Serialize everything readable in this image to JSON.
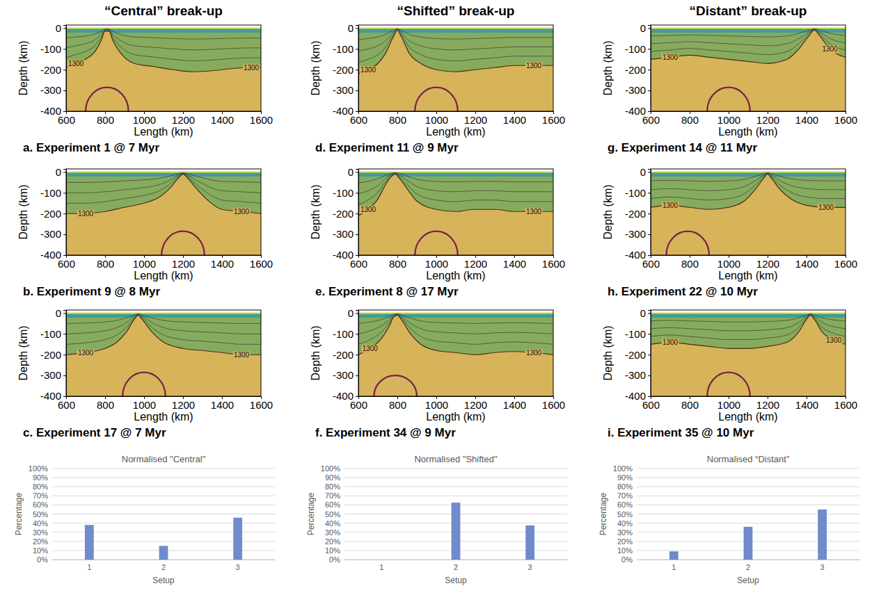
{
  "column_titles": [
    "“Central” break-up",
    "“Shifted” break-up",
    "“Distant” break-up"
  ],
  "chart_data": [
    {
      "type": "contour",
      "caption": "a. Experiment 1 @ 7 Myr",
      "xlabel": "Length (km)",
      "ylabel": "Depth (km)",
      "xlim": [
        600,
        1600
      ],
      "xticks": [
        600,
        800,
        1000,
        1200,
        1400,
        1600
      ],
      "ylim": [
        -400,
        15
      ],
      "yticks": [
        -400,
        -300,
        -200,
        -100,
        0
      ],
      "series": [
        {
          "name": "1300",
          "x": [
            600,
            650,
            700,
            750,
            780,
            800,
            820,
            840,
            880,
            950,
            1050,
            1150,
            1250,
            1350,
            1450,
            1550,
            1600
          ],
          "values": [
            -190,
            -170,
            -150,
            -110,
            -60,
            -15,
            -15,
            -60,
            -120,
            -170,
            -185,
            -200,
            -210,
            -205,
            -195,
            -190,
            -190
          ]
        }
      ],
      "anomaly": {
        "x": 810,
        "half_width": 110,
        "top": -285
      }
    },
    {
      "type": "contour",
      "caption": "b. Experiment 9 @ 8 Myr",
      "xlabel": "Length (km)",
      "ylabel": "Depth (km)",
      "xlim": [
        600,
        1600
      ],
      "xticks": [
        600,
        800,
        1000,
        1200,
        1400,
        1600
      ],
      "ylim": [
        -400,
        15
      ],
      "yticks": [
        -400,
        -300,
        -200,
        -100,
        0
      ],
      "series": [
        {
          "name": "1300",
          "x": [
            600,
            700,
            800,
            900,
            1000,
            1080,
            1140,
            1180,
            1200,
            1220,
            1260,
            1320,
            1400,
            1500,
            1600
          ],
          "values": [
            -200,
            -200,
            -190,
            -170,
            -150,
            -120,
            -70,
            -25,
            -10,
            -25,
            -70,
            -130,
            -180,
            -190,
            -200
          ]
        }
      ],
      "anomaly": {
        "x": 1200,
        "half_width": 110,
        "top": -285
      }
    },
    {
      "type": "contour",
      "caption": "c. Experiment 17 @ 7 Myr",
      "xlabel": "Length (km)",
      "ylabel": "Depth (km)",
      "xlim": [
        600,
        1600
      ],
      "xticks": [
        600,
        800,
        1000,
        1200,
        1400,
        1600
      ],
      "ylim": [
        -400,
        15
      ],
      "yticks": [
        -400,
        -300,
        -200,
        -100,
        0
      ],
      "series": [
        {
          "name": "1300",
          "x": [
            600,
            700,
            800,
            860,
            910,
            950,
            970,
            990,
            1040,
            1100,
            1200,
            1300,
            1400,
            1500,
            1600
          ],
          "values": [
            -200,
            -190,
            -170,
            -140,
            -90,
            -30,
            -10,
            -30,
            -90,
            -140,
            -170,
            -180,
            -190,
            -200,
            -200
          ]
        }
      ],
      "anomaly": {
        "x": 1000,
        "half_width": 110,
        "top": -285
      }
    },
    {
      "type": "contour",
      "caption": "d. Experiment 11 @ 9 Myr",
      "xlabel": "Length (km)",
      "ylabel": "Depth (km)",
      "xlim": [
        600,
        1600
      ],
      "xticks": [
        600,
        800,
        1000,
        1200,
        1400,
        1600
      ],
      "ylim": [
        -400,
        15
      ],
      "yticks": [
        -400,
        -300,
        -200,
        -100,
        0
      ],
      "series": [
        {
          "name": "1300",
          "x": [
            600,
            650,
            700,
            740,
            780,
            800,
            820,
            860,
            920,
            1000,
            1100,
            1200,
            1300,
            1400,
            1500,
            1600
          ],
          "values": [
            -220,
            -200,
            -170,
            -120,
            -40,
            -10,
            -40,
            -120,
            -170,
            -200,
            -210,
            -200,
            -190,
            -180,
            -180,
            -180
          ]
        }
      ],
      "anomaly": {
        "x": 1000,
        "half_width": 110,
        "top": -285
      }
    },
    {
      "type": "contour",
      "caption": "e. Experiment 8 @ 17 Myr",
      "xlabel": "Length (km)",
      "ylabel": "Depth (km)",
      "xlim": [
        600,
        1600
      ],
      "xticks": [
        600,
        800,
        1000,
        1200,
        1400,
        1600
      ],
      "ylim": [
        -400,
        15
      ],
      "yticks": [
        -400,
        -300,
        -200,
        -100,
        0
      ],
      "series": [
        {
          "name": "1300",
          "x": [
            600,
            650,
            700,
            740,
            770,
            790,
            810,
            850,
            900,
            1000,
            1100,
            1200,
            1300,
            1400,
            1500,
            1600
          ],
          "values": [
            -210,
            -180,
            -130,
            -60,
            -20,
            -10,
            -30,
            -80,
            -140,
            -180,
            -190,
            -180,
            -180,
            -190,
            -190,
            -190
          ]
        }
      ],
      "anomaly": {
        "x": 1000,
        "half_width": 110,
        "top": -285
      }
    },
    {
      "type": "contour",
      "caption": "f. Experiment 34 @ 9 Myr",
      "xlabel": "Length (km)",
      "ylabel": "Depth (km)",
      "xlim": [
        600,
        1600
      ],
      "xticks": [
        600,
        800,
        1000,
        1200,
        1400,
        1600
      ],
      "ylim": [
        -400,
        15
      ],
      "yticks": [
        -400,
        -300,
        -200,
        -100,
        0
      ],
      "series": [
        {
          "name": "1300",
          "x": [
            600,
            660,
            720,
            760,
            780,
            800,
            820,
            860,
            920,
            1000,
            1100,
            1200,
            1300,
            1400,
            1500,
            1600
          ],
          "values": [
            -200,
            -170,
            -120,
            -60,
            -20,
            -10,
            -30,
            -90,
            -150,
            -180,
            -190,
            -200,
            -190,
            -185,
            -190,
            -200
          ]
        }
      ],
      "anomaly": {
        "x": 790,
        "half_width": 110,
        "top": -300
      }
    },
    {
      "type": "contour",
      "caption": "g. Experiment 14 @ 11 Myr",
      "xlabel": "Length (km)",
      "ylabel": "Depth (km)",
      "xlim": [
        600,
        1600
      ],
      "xticks": [
        600,
        800,
        1000,
        1200,
        1400,
        1600
      ],
      "ylim": [
        -400,
        15
      ],
      "yticks": [
        -400,
        -300,
        -200,
        -100,
        0
      ],
      "series": [
        {
          "name": "1300",
          "x": [
            600,
            700,
            800,
            900,
            1000,
            1100,
            1200,
            1300,
            1360,
            1410,
            1440,
            1470,
            1520,
            1600
          ],
          "values": [
            -150,
            -140,
            -130,
            -140,
            -150,
            -160,
            -170,
            -150,
            -100,
            -40,
            -10,
            -40,
            -100,
            -140
          ]
        }
      ],
      "anomaly": {
        "x": 1000,
        "half_width": 110,
        "top": -285
      }
    },
    {
      "type": "contour",
      "caption": "h. Experiment 22 @ 10 Myr",
      "xlabel": "Length (km)",
      "ylabel": "Depth (km)",
      "xlim": [
        600,
        1600
      ],
      "xticks": [
        600,
        800,
        1000,
        1200,
        1400,
        1600
      ],
      "ylim": [
        -400,
        15
      ],
      "yticks": [
        -400,
        -300,
        -200,
        -100,
        0
      ],
      "series": [
        {
          "name": "1300",
          "x": [
            600,
            700,
            800,
            900,
            1000,
            1080,
            1140,
            1180,
            1200,
            1220,
            1260,
            1320,
            1400,
            1500,
            1600
          ],
          "values": [
            -170,
            -160,
            -170,
            -180,
            -170,
            -140,
            -80,
            -30,
            -10,
            -30,
            -80,
            -130,
            -160,
            -170,
            -170
          ]
        }
      ],
      "anomaly": {
        "x": 790,
        "half_width": 110,
        "top": -285
      }
    },
    {
      "type": "contour",
      "caption": "i. Experiment 35 @ 10 Myr",
      "xlabel": "Length (km)",
      "ylabel": "Depth (km)",
      "xlim": [
        600,
        1600
      ],
      "xticks": [
        600,
        800,
        1000,
        1200,
        1400,
        1600
      ],
      "ylim": [
        -400,
        15
      ],
      "yticks": [
        -400,
        -300,
        -200,
        -100,
        0
      ],
      "series": [
        {
          "name": "1300",
          "x": [
            600,
            700,
            800,
            900,
            1000,
            1100,
            1200,
            1300,
            1360,
            1400,
            1420,
            1440,
            1480,
            1540,
            1600
          ],
          "values": [
            -150,
            -140,
            -150,
            -160,
            -170,
            -170,
            -160,
            -140,
            -90,
            -30,
            -10,
            -30,
            -90,
            -130,
            -150
          ]
        }
      ],
      "anomaly": {
        "x": 1000,
        "half_width": 110,
        "top": -285
      }
    },
    {
      "type": "bar",
      "title": "Normalised \"Central\"",
      "xlabel": "Setup",
      "ylabel": "Percentage",
      "categories": [
        "1",
        "2",
        "3"
      ],
      "values": [
        38,
        15,
        46
      ],
      "color": "#6f8bcc",
      "grid": true,
      "ylim": [
        0,
        100
      ],
      "yticks": [
        {
          "value": 0,
          "label": "0%"
        },
        {
          "value": 10,
          "label": "10%"
        },
        {
          "value": 20,
          "label": "20%"
        },
        {
          "value": 30,
          "label": "30%"
        },
        {
          "value": 40,
          "label": "40%"
        },
        {
          "value": 50,
          "label": "50%"
        },
        {
          "value": 60,
          "label": "60%"
        },
        {
          "value": 70,
          "label": "70%"
        },
        {
          "value": 80,
          "label": "80%"
        },
        {
          "value": 90,
          "label": "90%"
        },
        {
          "value": 100,
          "label": "100%"
        }
      ]
    },
    {
      "type": "bar",
      "title": "Normalised \"Shifted\"",
      "xlabel": "Setup",
      "ylabel": "Percentage",
      "categories": [
        "1",
        "2",
        "3"
      ],
      "values": [
        0,
        62.5,
        37.5
      ],
      "color": "#6f8bcc",
      "grid": true,
      "ylim": [
        0,
        100
      ],
      "yticks": [
        {
          "value": 0,
          "label": "0%"
        },
        {
          "value": 10,
          "label": "10%"
        },
        {
          "value": 20,
          "label": "20%"
        },
        {
          "value": 30,
          "label": "30%"
        },
        {
          "value": 40,
          "label": "40%"
        },
        {
          "value": 50,
          "label": "50%"
        },
        {
          "value": 60,
          "label": "60%"
        },
        {
          "value": 70,
          "label": "70%"
        },
        {
          "value": 80,
          "label": "80%"
        },
        {
          "value": 90,
          "label": "90%"
        },
        {
          "value": 100,
          "label": "100%"
        }
      ]
    },
    {
      "type": "bar",
      "title": "Normalised “Distant”",
      "xlabel": "Setup",
      "ylabel": "Percentage",
      "categories": [
        "1",
        "2",
        "3"
      ],
      "values": [
        9,
        36,
        55
      ],
      "color": "#6f8bcc",
      "grid": true,
      "ylim": [
        0,
        100
      ],
      "yticks": [
        {
          "value": 0,
          "label": "0%"
        },
        {
          "value": 10,
          "label": "10%"
        },
        {
          "value": 20,
          "label": "20%"
        },
        {
          "value": 30,
          "label": "30%"
        },
        {
          "value": 40,
          "label": "40%"
        },
        {
          "value": 50,
          "label": "50%"
        },
        {
          "value": 60,
          "label": "60%"
        },
        {
          "value": 70,
          "label": "70%"
        },
        {
          "value": 80,
          "label": "80%"
        },
        {
          "value": 90,
          "label": "90%"
        },
        {
          "value": 100,
          "label": "100%"
        }
      ]
    }
  ]
}
